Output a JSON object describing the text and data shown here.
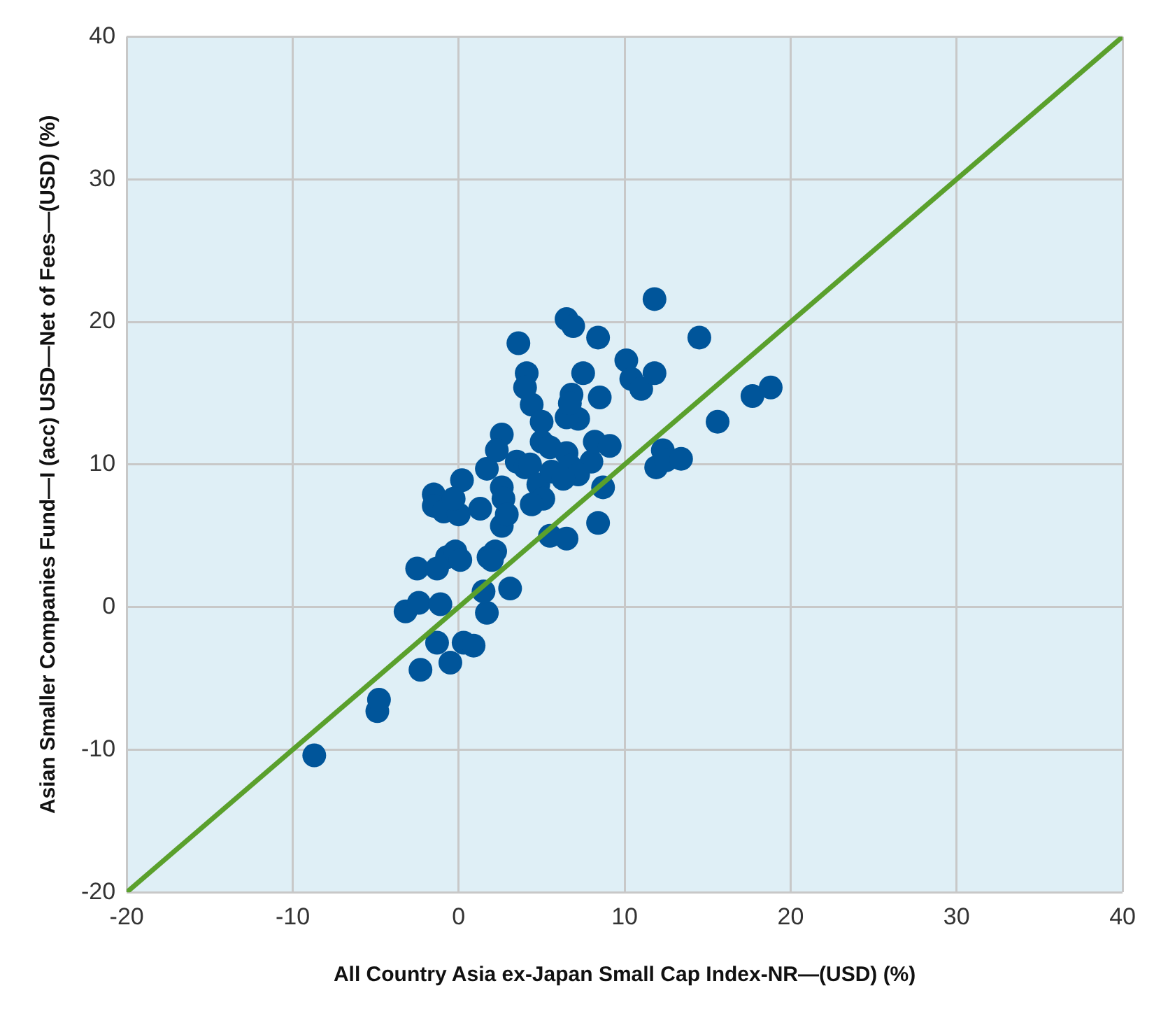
{
  "chart_data": {
    "type": "scatter",
    "xlabel": "All Country Asia ex-Japan Small Cap Index-NR—(USD) (%)",
    "ylabel": "Asian Smaller Companies Fund—I (acc) USD—Net of Fees—(USD) (%)",
    "xlim": [
      -20,
      40
    ],
    "ylim": [
      -20,
      40
    ],
    "xticks": [
      -20,
      -10,
      0,
      10,
      20,
      30,
      40
    ],
    "yticks": [
      -20,
      -10,
      0,
      10,
      20,
      30,
      40
    ],
    "grid": true,
    "marker": "circle",
    "legend": false,
    "series": [
      {
        "color": "#00559a",
        "x": [
          -8.7,
          -4.9,
          -4.8,
          -2.3,
          -0.5,
          -1.3,
          0.3,
          0.9,
          1.7,
          1.5,
          3.1,
          -3.2,
          -2.4,
          -1.1,
          -2.5,
          -1.3,
          -0.7,
          -0.2,
          0.1,
          1.8,
          2.2,
          2.0,
          -1.5,
          -1.5,
          -0.9,
          0,
          0.2,
          -0.3,
          1.7,
          2.6,
          2.7,
          2.6,
          2.9,
          2.6,
          2.3,
          3.5,
          4.0,
          4.3,
          3.6,
          4.1,
          4.0,
          4.4,
          5.0,
          5.0,
          5.5,
          4.8,
          5.1,
          4.4,
          5.5,
          5.6,
          6.5,
          6.9,
          8.4,
          6.8,
          7.5,
          7.2,
          8.5,
          6.5,
          6.7,
          8.0,
          8.2,
          9.1,
          6.5,
          6.7,
          7.2,
          6.3,
          8.7,
          8.4,
          6.5,
          11.8,
          10.1,
          10.4,
          11.0,
          11.8,
          14.5,
          15.6,
          17.7,
          18.8,
          12.3,
          11.9,
          12.5,
          13.4,
          1.3
        ],
        "values": [
          -10.4,
          -7.3,
          -6.5,
          -4.4,
          -3.9,
          -2.5,
          -2.5,
          -2.7,
          -0.4,
          1.1,
          1.3,
          -0.3,
          0.3,
          0.2,
          2.7,
          2.7,
          3.5,
          3.9,
          3.3,
          3.5,
          3.9,
          3.3,
          7.9,
          7.1,
          6.7,
          6.5,
          8.9,
          7.6,
          9.7,
          8.4,
          7.6,
          5.7,
          6.5,
          12.1,
          11.0,
          10.2,
          9.8,
          10.0,
          18.5,
          16.4,
          15.4,
          14.2,
          13.0,
          11.6,
          11.2,
          8.6,
          7.6,
          7.2,
          5.0,
          9.5,
          20.2,
          19.7,
          18.9,
          14.9,
          16.4,
          13.2,
          14.7,
          13.3,
          14.3,
          10.2,
          11.6,
          11.3,
          10.8,
          9.9,
          9.3,
          9.0,
          8.4,
          5.9,
          4.8,
          21.6,
          17.3,
          16.0,
          15.3,
          16.4,
          18.9,
          13.0,
          14.8,
          15.4,
          11.0,
          9.8,
          10.3,
          10.4,
          6.9
        ]
      },
      {
        "type": "line",
        "color": "#5aa02c",
        "x": [
          -20,
          40
        ],
        "values": [
          -20,
          40
        ],
        "marker": "none",
        "line_style": "solid"
      }
    ]
  }
}
